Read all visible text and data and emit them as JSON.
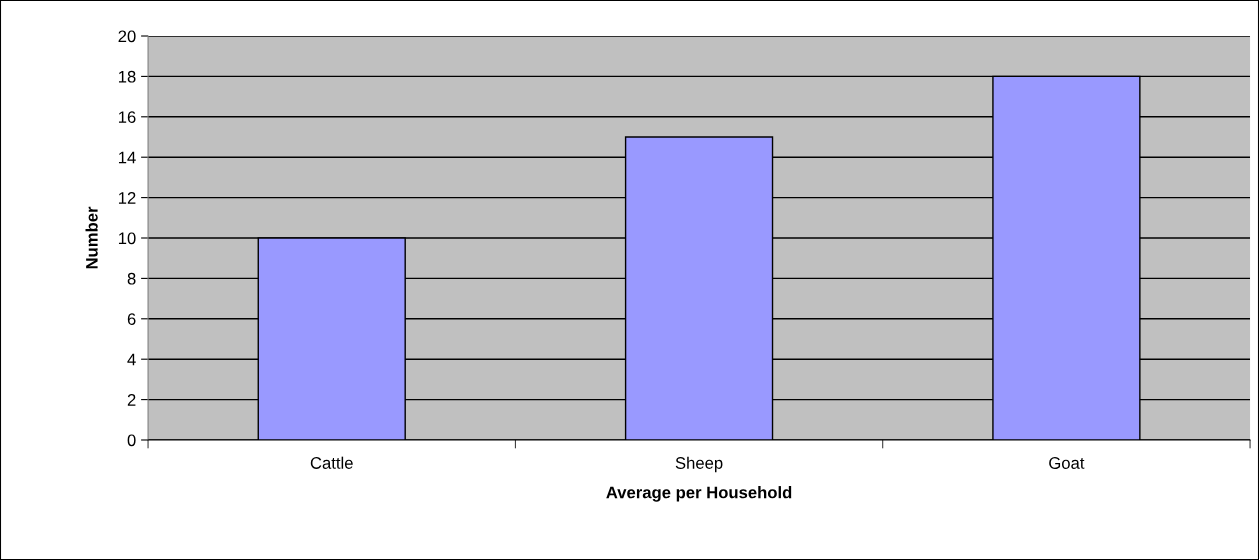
{
  "chart_data": {
    "type": "bar",
    "xlabel": "Average per Household",
    "ylabel": "Number",
    "categories": [
      "Cattle",
      "Sheep",
      "Goat"
    ],
    "values": [
      10,
      15,
      18
    ],
    "color": "#9999ff",
    "ylim": [
      0,
      20
    ],
    "yticks": [
      0,
      2,
      4,
      6,
      8,
      10,
      12,
      14,
      16,
      18,
      20
    ],
    "grid": "y",
    "legend": false
  }
}
